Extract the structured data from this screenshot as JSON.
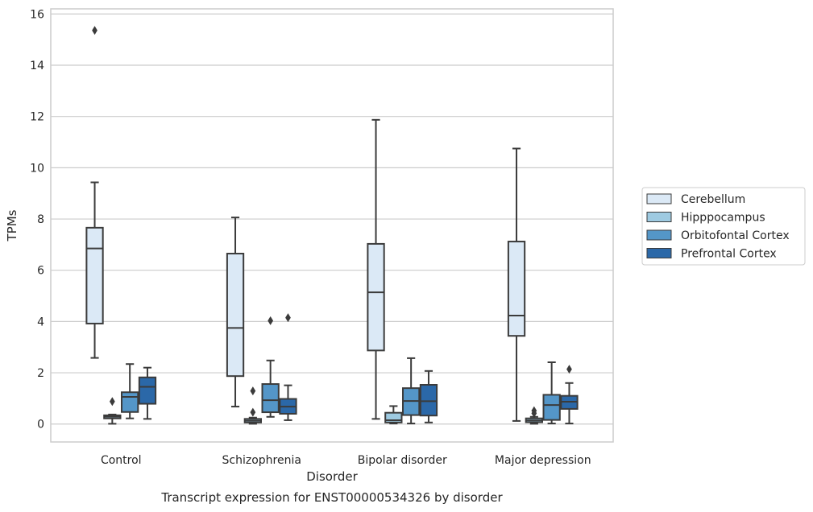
{
  "chart_data": {
    "type": "boxplot",
    "title": "",
    "caption": "Transcript expression for ENST00000534326 by disorder",
    "xlabel": "Disorder",
    "ylabel": "TPMs",
    "ylim": [
      -0.7,
      16.2
    ],
    "yticks": [
      0,
      2,
      4,
      6,
      8,
      10,
      12,
      14,
      16
    ],
    "grid": "horizontal",
    "legend_placement": "right",
    "categories": [
      "Control",
      "Schizophrenia",
      "Bipolar disorder",
      "Major depression"
    ],
    "series": [
      {
        "name": "Cerebellum",
        "color": "#dbe9f6",
        "boxes": [
          {
            "whisker_low": 2.58,
            "q1": 3.92,
            "median": 6.85,
            "q3": 7.66,
            "whisker_high": 9.43,
            "outliers": [
              15.36
            ]
          },
          {
            "whisker_low": 0.68,
            "q1": 1.87,
            "median": 3.75,
            "q3": 6.65,
            "whisker_high": 8.06,
            "outliers": []
          },
          {
            "whisker_low": 0.2,
            "q1": 2.87,
            "median": 5.14,
            "q3": 7.03,
            "whisker_high": 11.87,
            "outliers": []
          },
          {
            "whisker_low": 0.12,
            "q1": 3.44,
            "median": 4.23,
            "q3": 7.12,
            "whisker_high": 10.75,
            "outliers": []
          }
        ]
      },
      {
        "name": "Hipppocampus",
        "color": "#9ecae1",
        "boxes": [
          {
            "whisker_low": 0.01,
            "q1": 0.22,
            "median": 0.29,
            "q3": 0.34,
            "whisker_high": 0.37,
            "outliers": [
              0.88
            ]
          },
          {
            "whisker_low": 0.01,
            "q1": 0.06,
            "median": 0.13,
            "q3": 0.2,
            "whisker_high": 0.25,
            "outliers": [
              0.46,
              1.29
            ]
          },
          {
            "whisker_low": 0.02,
            "q1": 0.06,
            "median": 0.15,
            "q3": 0.44,
            "whisker_high": 0.7,
            "outliers": []
          },
          {
            "whisker_low": 0.01,
            "q1": 0.07,
            "median": 0.14,
            "q3": 0.22,
            "whisker_high": 0.28,
            "outliers": [
              0.42,
              0.52
            ]
          }
        ]
      },
      {
        "name": "Orbitofontal Cortex",
        "color": "#5496c8",
        "boxes": [
          {
            "whisker_low": 0.22,
            "q1": 0.47,
            "median": 1.06,
            "q3": 1.24,
            "whisker_high": 2.34,
            "outliers": []
          },
          {
            "whisker_low": 0.28,
            "q1": 0.46,
            "median": 0.93,
            "q3": 1.56,
            "whisker_high": 2.48,
            "outliers": [
              4.03
            ]
          },
          {
            "whisker_low": 0.02,
            "q1": 0.35,
            "median": 0.9,
            "q3": 1.4,
            "whisker_high": 2.57,
            "outliers": []
          },
          {
            "whisker_low": 0.02,
            "q1": 0.16,
            "median": 0.74,
            "q3": 1.14,
            "whisker_high": 2.41,
            "outliers": []
          }
        ]
      },
      {
        "name": "Prefrontal Cortex",
        "color": "#2b68a8",
        "boxes": [
          {
            "whisker_low": 0.2,
            "q1": 0.79,
            "median": 1.45,
            "q3": 1.82,
            "whisker_high": 2.2,
            "outliers": []
          },
          {
            "whisker_low": 0.15,
            "q1": 0.4,
            "median": 0.68,
            "q3": 0.98,
            "whisker_high": 1.51,
            "outliers": [
              4.15
            ]
          },
          {
            "whisker_low": 0.06,
            "q1": 0.33,
            "median": 0.89,
            "q3": 1.53,
            "whisker_high": 2.07,
            "outliers": []
          },
          {
            "whisker_low": 0.02,
            "q1": 0.59,
            "median": 0.87,
            "q3": 1.1,
            "whisker_high": 1.6,
            "outliers": [
              2.14
            ]
          }
        ]
      }
    ]
  }
}
